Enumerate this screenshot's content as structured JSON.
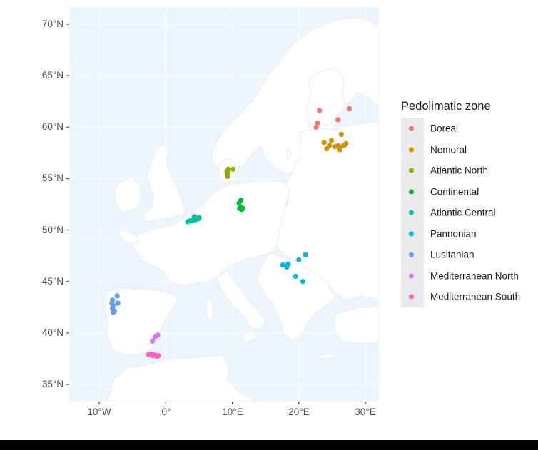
{
  "chart_data": {
    "type": "scatter",
    "subtype": "map",
    "title": "",
    "xlabel": "",
    "ylabel": "",
    "x_ticks": [
      "10°W",
      "0°",
      "10°E",
      "20°E",
      "30°E"
    ],
    "x_tick_values": [
      -10,
      0,
      10,
      20,
      30
    ],
    "y_ticks": [
      "35°N",
      "40°N",
      "45°N",
      "50°N",
      "55°N",
      "60°N",
      "65°N",
      "70°N"
    ],
    "y_tick_values": [
      35,
      40,
      45,
      50,
      55,
      60,
      65,
      70
    ],
    "xlim": [
      -14.5,
      32.0
    ],
    "ylim": [
      33.3,
      71.6
    ],
    "grid": true,
    "legend_position": "right",
    "legend_title": "Pedolimatic zone",
    "series": [
      {
        "name": "Boreal",
        "color": "#F8766D",
        "points": [
          [
            23.1,
            61.6
          ],
          [
            27.6,
            61.8
          ],
          [
            25.9,
            60.7
          ],
          [
            22.8,
            60.4
          ],
          [
            22.6,
            60.0
          ]
        ]
      },
      {
        "name": "Nemoral",
        "color": "#D39200",
        "points": [
          [
            26.4,
            59.3
          ],
          [
            23.8,
            58.5
          ],
          [
            24.9,
            58.7
          ],
          [
            24.6,
            58.2
          ],
          [
            25.4,
            58.1
          ],
          [
            26.1,
            58.0
          ],
          [
            26.7,
            58.2
          ],
          [
            27.1,
            58.4
          ],
          [
            27.0,
            58.3
          ],
          [
            24.2,
            57.9
          ],
          [
            26.2,
            57.8
          ],
          [
            25.9,
            58.2
          ]
        ]
      },
      {
        "name": "Atlantic North",
        "color": "#93AA00",
        "points": [
          [
            9.2,
            55.4
          ],
          [
            9.2,
            55.7
          ],
          [
            9.3,
            55.2
          ],
          [
            9.4,
            55.9
          ],
          [
            10.1,
            55.9
          ],
          [
            9.3,
            55.6
          ]
        ]
      },
      {
        "name": "Continental",
        "color": "#00BA38",
        "points": [
          [
            11.3,
            52.9
          ],
          [
            11.0,
            52.6
          ],
          [
            11.1,
            52.1
          ],
          [
            11.4,
            52.0
          ],
          [
            11.3,
            52.2
          ],
          [
            11.6,
            52.1
          ]
        ]
      },
      {
        "name": "Atlantic Central",
        "color": "#00C19F",
        "points": [
          [
            3.3,
            50.8
          ],
          [
            3.7,
            50.9
          ],
          [
            4.0,
            50.9
          ],
          [
            4.3,
            51.3
          ],
          [
            4.5,
            51.0
          ],
          [
            4.9,
            51.1
          ],
          [
            5.0,
            51.2
          ],
          [
            4.4,
            51.2
          ]
        ]
      },
      {
        "name": "Pannonian",
        "color": "#00B9E3",
        "points": [
          [
            17.6,
            46.6
          ],
          [
            18.2,
            46.5
          ],
          [
            18.4,
            46.7
          ],
          [
            18.2,
            46.4
          ],
          [
            20.0,
            47.1
          ],
          [
            21.0,
            47.6
          ],
          [
            19.5,
            45.5
          ],
          [
            20.6,
            45.0
          ]
        ]
      },
      {
        "name": "Lusitanian",
        "color": "#619CFF",
        "points": [
          [
            -7.3,
            43.6
          ],
          [
            -8.0,
            43.2
          ],
          [
            -8.1,
            42.9
          ],
          [
            -7.2,
            42.9
          ],
          [
            -7.9,
            42.7
          ],
          [
            -8.0,
            42.4
          ],
          [
            -7.7,
            42.1
          ],
          [
            -7.9,
            42.0
          ]
        ]
      },
      {
        "name": "Mediterranean North",
        "color": "#DB72FB",
        "points": [
          [
            -1.2,
            39.8
          ],
          [
            -1.6,
            39.6
          ],
          [
            -2.0,
            39.2
          ]
        ]
      },
      {
        "name": "Mediterranean South",
        "color": "#FF61C3",
        "points": [
          [
            -2.6,
            37.9
          ],
          [
            -2.2,
            37.95
          ],
          [
            -1.8,
            37.9
          ],
          [
            -1.5,
            37.8
          ],
          [
            -1.1,
            37.8
          ],
          [
            -1.3,
            37.7
          ],
          [
            -2.0,
            37.8
          ]
        ]
      }
    ]
  },
  "legend": {
    "title": "Pedolimatic zone",
    "items": [
      {
        "label": "Boreal",
        "color": "#F8766D"
      },
      {
        "label": "Nemoral",
        "color": "#D39200"
      },
      {
        "label": "Atlantic North",
        "color": "#93AA00"
      },
      {
        "label": "Continental",
        "color": "#00BA38"
      },
      {
        "label": "Atlantic Central",
        "color": "#00C19F"
      },
      {
        "label": "Pannonian",
        "color": "#00B9E3"
      },
      {
        "label": "Lusitanian",
        "color": "#619CFF"
      },
      {
        "label": "Mediterranean North",
        "color": "#DB72FB"
      },
      {
        "label": "Mediterranean South",
        "color": "#FF61C3"
      }
    ]
  },
  "axes": {
    "y": [
      "70°N",
      "65°N",
      "60°N",
      "55°N",
      "50°N",
      "45°N",
      "40°N",
      "35°N"
    ],
    "x": [
      "10°W",
      "0°",
      "10°E",
      "20°E",
      "30°E"
    ]
  },
  "colors": {
    "sea": "#EEF6FD",
    "land": "#FFFFFF",
    "border": "#E3EDF4",
    "grid": "#FFFFFF"
  }
}
